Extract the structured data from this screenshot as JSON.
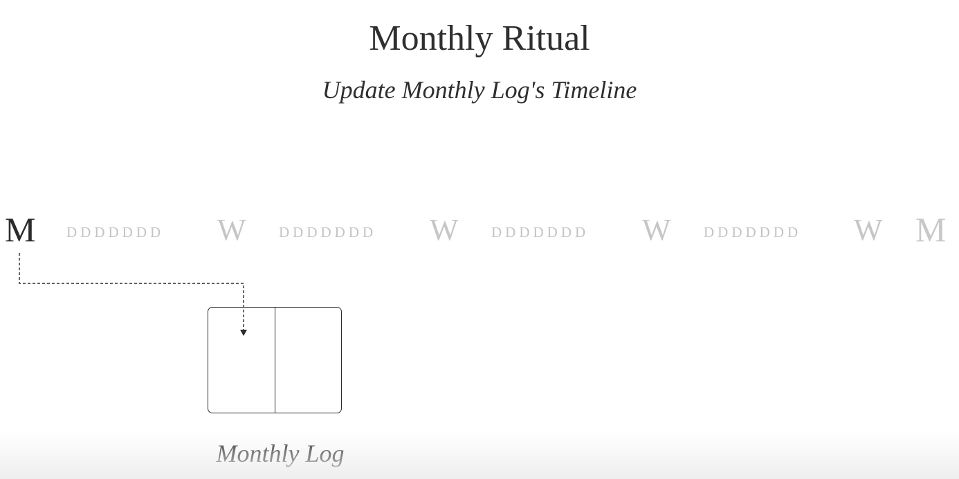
{
  "header": {
    "title": "Monthly Ritual",
    "subtitle": "Update Monthly Log's Timeline"
  },
  "timeline": {
    "start_month": "M",
    "week_1_days": "DDDDDDD",
    "week_1": "W",
    "week_2_days": "DDDDDDD",
    "week_2": "W",
    "week_3_days": "DDDDDDD",
    "week_3": "W",
    "week_4_days": "DDDDDDD",
    "week_4": "W",
    "end_month": "M",
    "active_color": "#2b2b2b",
    "inactive_color": "#c6c6c6"
  },
  "spread": {
    "label": "Monthly Log"
  }
}
